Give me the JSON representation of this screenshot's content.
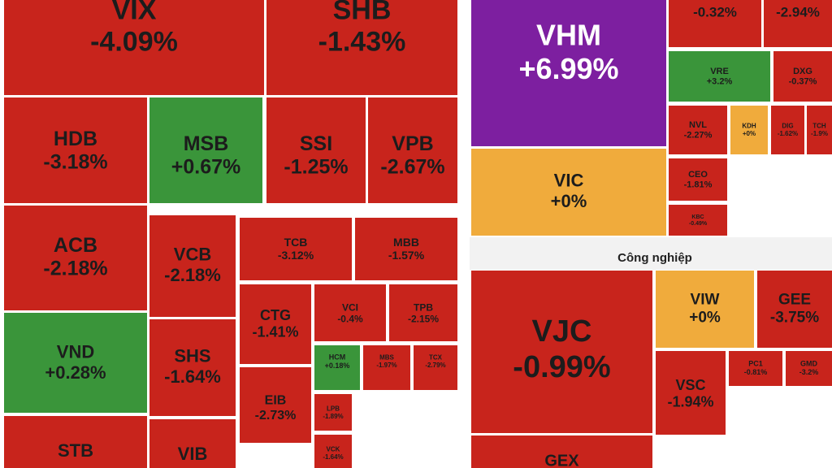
{
  "chart_data": [
    {
      "type": "treemap",
      "categories": [
        "VIX",
        "SHB",
        "HDB",
        "MSB",
        "SSI",
        "VPB",
        "ACB",
        "VCB",
        "TCB",
        "MBB",
        "VND",
        "SHS",
        "CTG",
        "VCI",
        "TPB",
        "HCM",
        "MBS",
        "TCX",
        "EIB",
        "LPB",
        "VCK",
        "STB",
        "VIB"
      ],
      "values": [
        -4.09,
        -1.43,
        -3.18,
        0.67,
        -1.25,
        -2.67,
        -2.18,
        -2.18,
        -3.12,
        -1.57,
        0.28,
        -1.64,
        -1.41,
        -0.4,
        -2.15,
        0.18,
        -1.97,
        -2.79,
        -2.73,
        -1.89,
        -1.64,
        null,
        null
      ],
      "value_labels": [
        "-4.09%",
        "-1.43%",
        "-3.18%",
        "+0.67%",
        "-1.25%",
        "-2.67%",
        "-2.18%",
        "-2.18%",
        "-3.12%",
        "-1.57%",
        "+0.28%",
        "-1.64%",
        "-1.41%",
        "-0.4%",
        "-2.15%",
        "+0.18%",
        "-1.97%",
        "-2.79%",
        "-2.73%",
        "-1.89%",
        "-1.64%",
        null,
        null
      ],
      "colors": [
        "#c8241c",
        "#c8241c",
        "#c8241c",
        "#3a953a",
        "#c8241c",
        "#c8241c",
        "#c8241c",
        "#c8241c",
        "#c8241c",
        "#c8241c",
        "#3a953a",
        "#c8241c",
        "#c8241c",
        "#c8241c",
        "#c8241c",
        "#3a953a",
        "#c8241c",
        "#c8241c",
        "#c8241c",
        "#c8241c",
        "#c8241c",
        "#c8241c",
        "#c8241c"
      ]
    },
    {
      "type": "treemap",
      "categories": [
        "VHM",
        null,
        null,
        "VIC",
        "VRE",
        "DXG",
        "NVL",
        "KDH",
        "DIG",
        "TCH",
        "CEO",
        "KBC"
      ],
      "values": [
        6.99,
        -0.32,
        -2.94,
        0,
        3.2,
        -0.37,
        -2.27,
        0,
        -1.62,
        -1.9,
        -1.81,
        -0.49
      ],
      "value_labels": [
        "+6.99%",
        "-0.32%",
        "-2.94%",
        "+0%",
        "+3.2%",
        "-0.37%",
        "-2.27%",
        "+0%",
        "-1.62%",
        "-1.9%",
        "-1.81%",
        "-0.49%"
      ],
      "colors": [
        "#7d1fa0",
        "#c8241c",
        "#c8241c",
        "#f0ab3c",
        "#3a953a",
        "#c8241c",
        "#c8241c",
        "#f0ab3c",
        "#c8241c",
        "#c8241c",
        "#c8241c",
        "#c8241c"
      ]
    },
    {
      "type": "treemap",
      "title": "Công nghiệp",
      "categories": [
        "VJC",
        "VIW",
        "GEE",
        "VSC",
        "PC1",
        "GMD",
        "GEX"
      ],
      "values": [
        -0.99,
        0,
        -3.75,
        -1.94,
        -0.81,
        -3.2,
        null
      ],
      "value_labels": [
        "-0.99%",
        "+0%",
        "-3.75%",
        "-1.94%",
        "-0.81%",
        "-3.2%",
        null
      ],
      "colors": [
        "#c8241c",
        "#f0ab3c",
        "#c8241c",
        "#c8241c",
        "#c8241c",
        "#c8241c",
        "#c8241c"
      ]
    }
  ]
}
